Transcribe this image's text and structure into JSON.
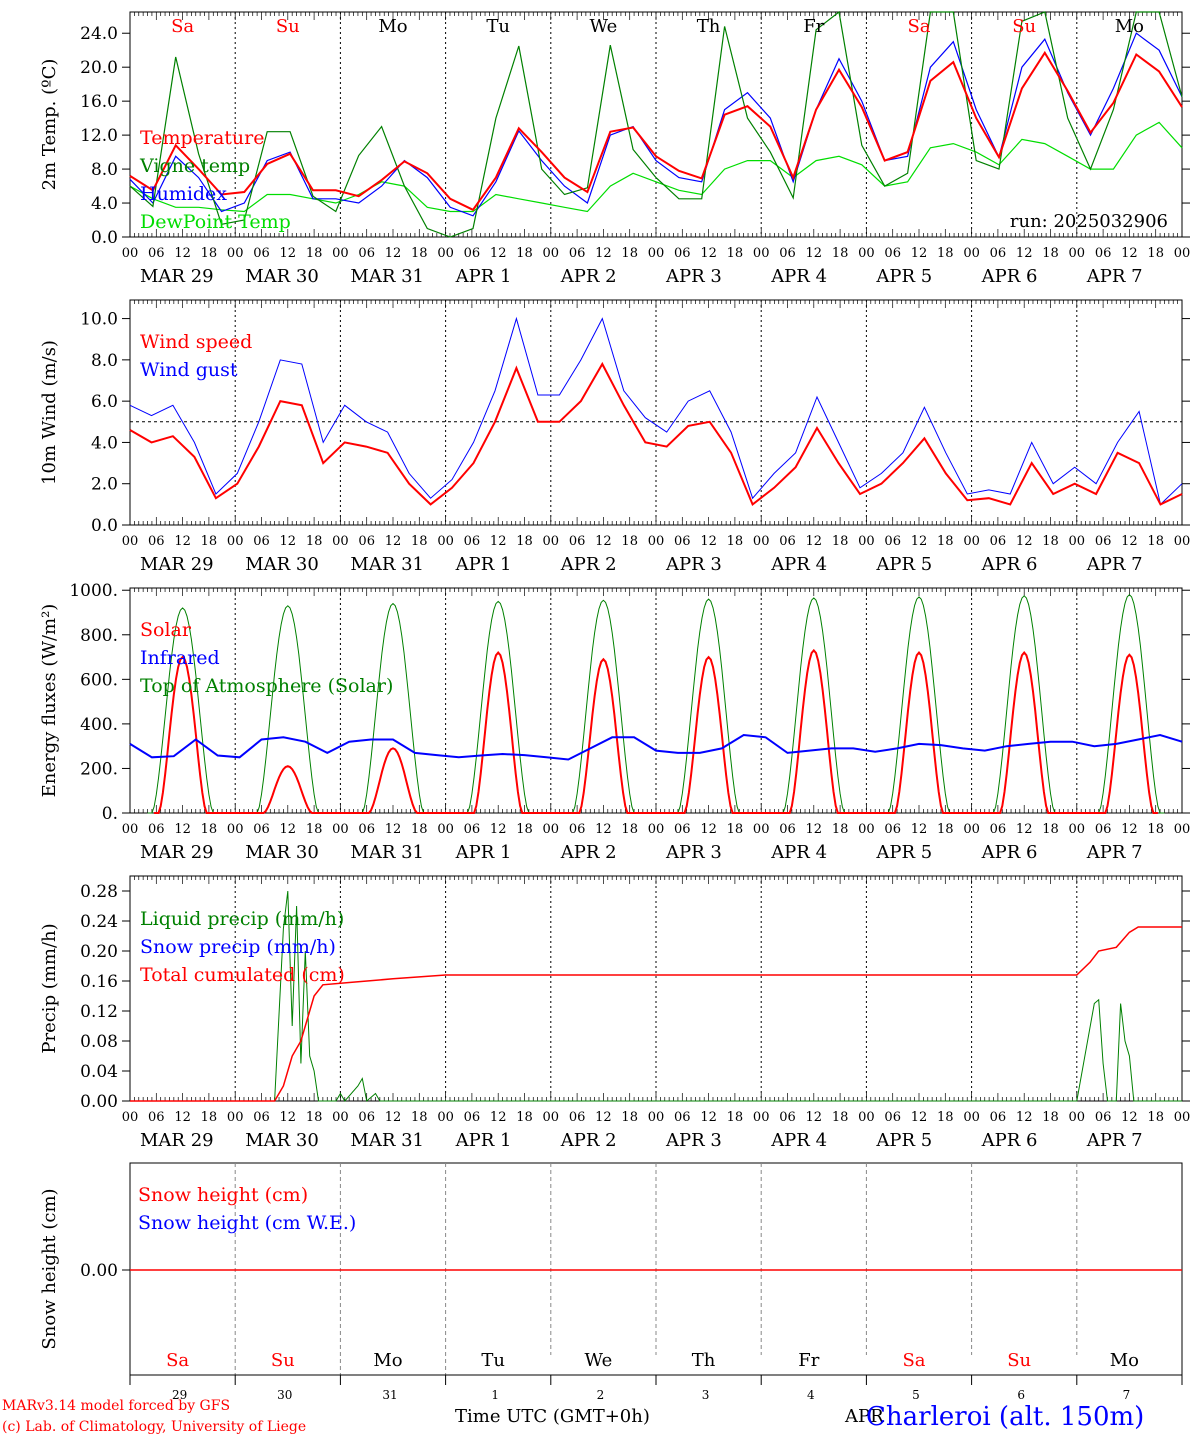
{
  "run_label": "run: 2025032906",
  "days": [
    "Sa",
    "Su",
    "Mo",
    "Tu",
    "We",
    "Th",
    "Fr",
    "Sa",
    "Su",
    "Mo"
  ],
  "weekend_idx": [
    0,
    1,
    7,
    8
  ],
  "date_labels": [
    "MAR 29",
    "MAR 30",
    "MAR 31",
    "APR  1",
    "APR  2",
    "APR  3",
    "APR  4",
    "APR  5",
    "APR  6",
    "APR  7"
  ],
  "hour_labels": [
    "00",
    "06",
    "12",
    "18"
  ],
  "bottom_day_numbers": [
    "29",
    "30",
    "31",
    "1",
    "2",
    "3",
    "4",
    "5",
    "6",
    "7"
  ],
  "x_axis_title": "Time UTC (GMT+0h)",
  "month_label": "APR",
  "footer": {
    "model": "MARv3.14 model forced by GFS",
    "copyright": "(c) Lab. of Climatology, University of Liege",
    "station": "Charleroi (alt. 150m)"
  },
  "colors": {
    "red": "#ff0000",
    "blue": "#0000ff",
    "green": "#008000",
    "lightgreen": "#00dd00"
  },
  "chart_data": [
    {
      "type": "line",
      "ylabel": "2m Temp. (ºC)",
      "ylim": [
        0,
        26.5
      ],
      "yticks": [
        0,
        4,
        8,
        12,
        16,
        20,
        24
      ],
      "ytick_labels": [
        "0.0",
        "4.0",
        "8.0",
        "12.0",
        "16.0",
        "20.0",
        "24.0"
      ],
      "x_hours_step": 6,
      "series": [
        {
          "name": "Temperature",
          "color": "#ff0000",
          "values": [
            7.2,
            5.5,
            10.8,
            8,
            5,
            5.3,
            8.6,
            9.8,
            5.5,
            5.5,
            4.8,
            6.7,
            8.9,
            7.5,
            4.5,
            3.2,
            7,
            12.8,
            10,
            7,
            5.3,
            12.4,
            12.9,
            9.5,
            7.8,
            6.9,
            14.4,
            15.4,
            13,
            7,
            15,
            19.7,
            15.3,
            9,
            10,
            18.4,
            20.6,
            14,
            9.4,
            17.5,
            21.7,
            17.2,
            12.3,
            15.8,
            21.5,
            19.5,
            15.3
          ]
        },
        {
          "name": "Vigne temp",
          "color": "#008000",
          "values": [
            6,
            3.6,
            21.2,
            9.8,
            1.5,
            2,
            12.4,
            12.4,
            4.8,
            3,
            9.6,
            13,
            6,
            1,
            0,
            1,
            14,
            22.5,
            8,
            5,
            5.8,
            22.6,
            10.3,
            7,
            4.5,
            4.5,
            24.8,
            14,
            10,
            4.6,
            24.4,
            27,
            10.8,
            6,
            7.5,
            27,
            30,
            9,
            8,
            25.4,
            28.3,
            14,
            8,
            15,
            32,
            28.7,
            16.5
          ]
        },
        {
          "name": "Humidex",
          "color": "#0000ff",
          "values": [
            6.8,
            4,
            9.5,
            7,
            3,
            4,
            9,
            10,
            4.5,
            4.5,
            4,
            6,
            9,
            7,
            3.5,
            2.5,
            6.5,
            12.5,
            9,
            6,
            4,
            12,
            13,
            9,
            7,
            6.5,
            15,
            17,
            14,
            6.5,
            15,
            21,
            16,
            9,
            9.5,
            20,
            23,
            15,
            9.4,
            20,
            23.3,
            17,
            12,
            17.5,
            24,
            22,
            16.5
          ]
        },
        {
          "name": "DewPoint Temp",
          "color": "#00dd00",
          "values": [
            6,
            4.5,
            3.5,
            3.5,
            3.2,
            3,
            5,
            5,
            4.5,
            4,
            5,
            6.5,
            6,
            3.5,
            3,
            3,
            5,
            4.5,
            4,
            3.5,
            3,
            6,
            7.5,
            6.5,
            5.5,
            5,
            8,
            9,
            9,
            7,
            9,
            9.5,
            8.5,
            6,
            6.5,
            10.5,
            11,
            10,
            8.5,
            11.5,
            11,
            9.5,
            8,
            8,
            12,
            13.5,
            10.5
          ]
        }
      ]
    },
    {
      "type": "line",
      "ylabel": "10m Wind (m/s)",
      "ylim": [
        0,
        10.9
      ],
      "yticks": [
        0,
        2,
        4,
        6,
        8,
        10
      ],
      "ytick_labels": [
        "0.0",
        "2.0",
        "4.0",
        "6.0",
        "8.0",
        "10.0"
      ],
      "reference_line": 5.0,
      "series": [
        {
          "name": "Wind speed",
          "color": "#ff0000",
          "values": [
            4.6,
            4,
            4.3,
            3.3,
            1.3,
            2,
            3.8,
            6,
            5.8,
            3,
            4,
            3.8,
            3.5,
            2,
            1,
            1.8,
            3,
            5,
            7.6,
            5,
            5,
            6,
            7.8,
            5.8,
            4,
            3.8,
            4.8,
            5,
            3.5,
            1,
            1.8,
            2.8,
            4.7,
            3,
            1.5,
            2,
            3,
            4.2,
            2.5,
            1.2,
            1.3,
            1,
            3,
            1.5,
            2,
            1.5,
            3.5,
            3,
            1,
            1.5
          ]
        },
        {
          "name": "Wind gust",
          "color": "#0000ff",
          "values": [
            5.8,
            5.3,
            5.8,
            4,
            1.5,
            2.5,
            5,
            8,
            7.8,
            4,
            5.8,
            5,
            4.5,
            2.5,
            1.3,
            2.2,
            4,
            6.5,
            10,
            6.3,
            6.3,
            8,
            10,
            6.5,
            5.2,
            4.5,
            6,
            6.5,
            4.5,
            1.3,
            2.5,
            3.5,
            6.2,
            4,
            1.8,
            2.5,
            3.5,
            5.7,
            3.5,
            1.5,
            1.7,
            1.5,
            4,
            2,
            2.8,
            2,
            4,
            5.5,
            1,
            2
          ]
        }
      ]
    },
    {
      "type": "line",
      "ylabel": "Energy fluxes (W/m²)",
      "ylim": [
        0,
        1010
      ],
      "yticks": [
        0,
        200,
        400,
        600,
        800,
        1000
      ],
      "ytick_labels": [
        "0.",
        "200.",
        "400.",
        "600.",
        "800.",
        "1000."
      ],
      "series": [
        {
          "name": "Solar",
          "color": "#ff0000",
          "day_peaks": [
            700,
            210,
            290,
            720,
            690,
            700,
            730,
            720,
            720,
            710
          ]
        },
        {
          "name": "Infrared",
          "color": "#0000ff",
          "values": [
            310,
            250,
            255,
            330,
            258,
            250,
            330,
            340,
            320,
            270,
            320,
            330,
            330,
            270,
            260,
            250,
            258,
            265,
            260,
            250,
            240,
            290,
            340,
            340,
            280,
            270,
            270,
            290,
            350,
            340,
            270,
            280,
            290,
            290,
            275,
            290,
            310,
            305,
            290,
            280,
            300,
            310,
            320,
            320,
            300,
            310,
            330,
            350,
            320
          ]
        },
        {
          "name": "Top of Atmosphere (Solar)",
          "color": "#008000",
          "day_peaks": [
            920,
            930,
            940,
            950,
            955,
            960,
            965,
            970,
            975,
            980
          ]
        }
      ]
    },
    {
      "type": "line",
      "ylabel": "Precip (mm/h)",
      "ylim": [
        0,
        0.3
      ],
      "yticks": [
        0,
        0.04,
        0.08,
        0.12,
        0.16,
        0.2,
        0.24,
        0.28
      ],
      "ytick_labels": [
        "0.00",
        "0.04",
        "0.08",
        "0.12",
        "0.16",
        "0.20",
        "0.24",
        "0.28"
      ],
      "series": [
        {
          "name": "Liquid precip (mm/h)",
          "color": "#008000",
          "points": [
            [
              0,
              0
            ],
            [
              33,
              0
            ],
            [
              35,
              0.23
            ],
            [
              36,
              0.28
            ],
            [
              37,
              0.1
            ],
            [
              38,
              0.26
            ],
            [
              39,
              0.05
            ],
            [
              40,
              0.2
            ],
            [
              41,
              0.06
            ],
            [
              42,
              0.04
            ],
            [
              43,
              0
            ],
            [
              47,
              0
            ],
            [
              48,
              0.01
            ],
            [
              49,
              0
            ],
            [
              52,
              0.02
            ],
            [
              53,
              0.03
            ],
            [
              54,
              0
            ],
            [
              56,
              0.01
            ],
            [
              57,
              0
            ],
            [
              216,
              0
            ],
            [
              220,
              0.13
            ],
            [
              221,
              0.135
            ],
            [
              222,
              0.05
            ],
            [
              223,
              0
            ],
            [
              225,
              0
            ],
            [
              226,
              0.13
            ],
            [
              227,
              0.08
            ],
            [
              228,
              0.06
            ],
            [
              229,
              0
            ],
            [
              240,
              0
            ]
          ]
        },
        {
          "name": "Snow precip (mm/h)",
          "color": "#0000ff",
          "values": []
        },
        {
          "name": "Total cumulated (cm)",
          "color": "#ff0000",
          "points": [
            [
              0,
              0
            ],
            [
              33,
              0
            ],
            [
              35,
              0.02
            ],
            [
              37,
              0.06
            ],
            [
              39,
              0.08
            ],
            [
              42,
              0.14
            ],
            [
              44,
              0.155
            ],
            [
              50,
              0.158
            ],
            [
              60,
              0.163
            ],
            [
              72,
              0.168
            ],
            [
              216,
              0.168
            ],
            [
              219,
              0.185
            ],
            [
              221,
              0.2
            ],
            [
              225,
              0.205
            ],
            [
              228,
              0.225
            ],
            [
              230,
              0.232
            ],
            [
              240,
              0.232
            ]
          ]
        }
      ]
    },
    {
      "type": "line",
      "ylabel": "Snow height (cm)",
      "ytick_labels": [
        "0.00"
      ],
      "series": [
        {
          "name": "Snow height (cm)",
          "color": "#ff0000",
          "values": [
            0
          ]
        },
        {
          "name": "Snow height (cm W.E.)",
          "color": "#0000ff",
          "values": [
            0
          ]
        }
      ]
    }
  ]
}
